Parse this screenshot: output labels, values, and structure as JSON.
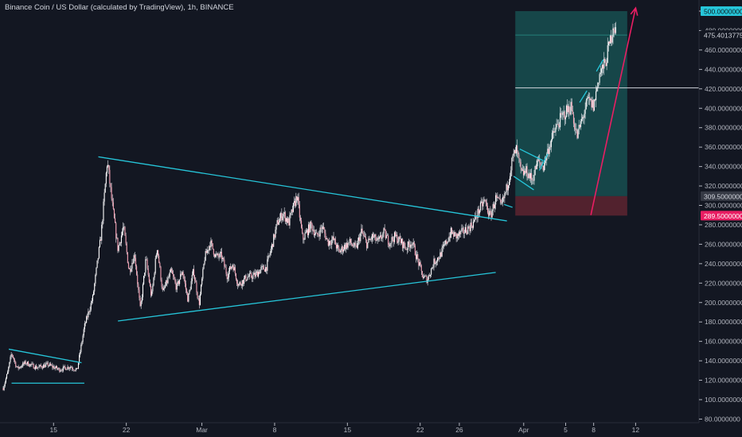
{
  "header": {
    "title": "Binance Coin / US Dollar (calculated by TradingView), 1h, BINANCE"
  },
  "colors": {
    "background": "#131722",
    "axis_bg": "#131722",
    "axis_text": "#b2b5be",
    "candle": "#f7a1b4",
    "wick": "#e8e8ee",
    "trendline": "#26c6da",
    "target_zone": "#1a6e6a",
    "stop_zone": "#5a2430",
    "arrow": "#e91e63",
    "hline": "#d1d4dc",
    "price_tag_bg": "#b2b5be",
    "stop_tag_bg": "#e91e63",
    "entry_tag_bg": "#363a45"
  },
  "chart_data": {
    "type": "candlestick",
    "symbol": "Binance Coin / US Dollar (calculated by TradingView), 1h, BINANCE",
    "ylim": [
      80,
      500
    ],
    "y_ticks": [
      "80.0000000",
      "100.0000000",
      "120.0000000",
      "140.0000000",
      "160.0000000",
      "180.0000000",
      "200.0000000",
      "220.0000000",
      "240.0000000",
      "260.0000000",
      "280.0000000",
      "300.0000000",
      "320.0000000",
      "340.0000000",
      "360.0000000",
      "380.0000000",
      "400.0000000",
      "420.0000000",
      "440.0000000",
      "460.0000000",
      "480.0000000",
      "500.0000000"
    ],
    "x_ticks": [
      "15",
      "22",
      "Mar",
      "8",
      "15",
      "22",
      "26",
      "Apr",
      "5",
      "8",
      "12"
    ],
    "price_tags": {
      "target": "500.0000000",
      "last": "475.4013775",
      "entry": "309.5000000",
      "stop": "289.5000000"
    },
    "hline_price": 421,
    "price_path": [
      [
        0,
        112
      ],
      [
        0.8,
        128
      ],
      [
        1.5,
        148
      ],
      [
        2.5,
        132
      ],
      [
        4,
        138
      ],
      [
        6,
        133
      ],
      [
        8,
        136
      ],
      [
        10,
        131
      ],
      [
        12,
        134
      ],
      [
        13.2,
        130
      ],
      [
        14.5,
        175
      ],
      [
        16,
        205
      ],
      [
        17.5,
        270
      ],
      [
        18.6,
        346
      ],
      [
        19.5,
        300
      ],
      [
        20.5,
        255
      ],
      [
        21.5,
        278
      ],
      [
        22.5,
        232
      ],
      [
        23.5,
        250
      ],
      [
        24.5,
        192
      ],
      [
        25.5,
        245
      ],
      [
        26.5,
        205
      ],
      [
        27.5,
        258
      ],
      [
        28.5,
        210
      ],
      [
        30,
        232
      ],
      [
        31,
        215
      ],
      [
        32,
        233
      ],
      [
        33,
        203
      ],
      [
        34,
        233
      ],
      [
        35,
        198
      ],
      [
        36,
        246
      ],
      [
        37,
        262
      ],
      [
        38,
        247
      ],
      [
        39,
        248
      ],
      [
        40,
        228
      ],
      [
        41,
        240
      ],
      [
        42,
        218
      ],
      [
        43.5,
        226
      ],
      [
        45,
        228
      ],
      [
        46,
        234
      ],
      [
        47,
        236
      ],
      [
        48,
        258
      ],
      [
        49,
        282
      ],
      [
        50,
        292
      ],
      [
        51,
        282
      ],
      [
        52.5,
        310
      ],
      [
        53.5,
        265
      ],
      [
        55,
        280
      ],
      [
        56,
        268
      ],
      [
        57,
        278
      ],
      [
        58,
        262
      ],
      [
        59,
        265
      ],
      [
        60,
        252
      ],
      [
        61,
        258
      ],
      [
        62,
        262
      ],
      [
        63,
        255
      ],
      [
        64,
        273
      ],
      [
        65,
        260
      ],
      [
        66,
        268
      ],
      [
        67,
        262
      ],
      [
        68,
        272
      ],
      [
        69,
        262
      ],
      [
        70,
        268
      ],
      [
        71,
        263
      ],
      [
        72,
        256
      ],
      [
        73,
        263
      ],
      [
        74,
        245
      ],
      [
        75,
        226
      ],
      [
        75.8,
        224
      ],
      [
        77,
        242
      ],
      [
        78,
        248
      ],
      [
        79,
        260
      ],
      [
        80,
        272
      ],
      [
        81,
        268
      ],
      [
        82,
        272
      ],
      [
        83,
        276
      ],
      [
        84,
        282
      ],
      [
        85,
        295
      ],
      [
        86,
        305
      ],
      [
        87,
        288
      ],
      [
        88,
        307
      ],
      [
        89,
        299
      ],
      [
        90,
        318
      ],
      [
        91,
        348
      ],
      [
        91.7,
        357
      ],
      [
        92.6,
        332
      ],
      [
        93.5,
        335
      ],
      [
        94.5,
        326
      ],
      [
        95.5,
        345
      ],
      [
        96.5,
        340
      ],
      [
        97.5,
        360
      ],
      [
        98.5,
        376
      ],
      [
        99.5,
        388
      ],
      [
        100.5,
        396
      ],
      [
        101.5,
        402
      ],
      [
        102.5,
        370
      ],
      [
        103.5,
        390
      ],
      [
        104.5,
        408
      ],
      [
        105.5,
        402
      ],
      [
        106.5,
        435
      ],
      [
        107.5,
        445
      ],
      [
        108.5,
        470
      ],
      [
        109,
        487
      ],
      [
        109.5,
        478
      ]
    ],
    "annotations": {
      "trendlines": [
        [
          [
            1,
            152
          ],
          [
            14,
            138
          ]
        ],
        [
          [
            1.5,
            117
          ],
          [
            14.5,
            117
          ]
        ],
        [
          [
            17,
            350
          ],
          [
            90,
            284
          ]
        ],
        [
          [
            20.5,
            181
          ],
          [
            88,
            231
          ]
        ],
        [
          [
            89.5,
            301
          ],
          [
            91,
            298
          ]
        ],
        [
          [
            92.3,
            358
          ],
          [
            96.5,
            346
          ]
        ],
        [
          [
            91.2,
            330
          ],
          [
            94.8,
            316
          ]
        ],
        [
          [
            95.8,
            336
          ],
          [
            97.3,
            353
          ]
        ],
        [
          [
            103,
            406
          ],
          [
            104.3,
            418
          ]
        ],
        [
          [
            106,
            438
          ],
          [
            107.2,
            450
          ]
        ]
      ],
      "position": {
        "x0": 91.5,
        "x1": 111.5,
        "target": 500,
        "entry": 309.5,
        "stop": 289.5
      },
      "arrow": [
        [
          105,
          290
        ],
        [
          113,
          500
        ]
      ]
    }
  }
}
